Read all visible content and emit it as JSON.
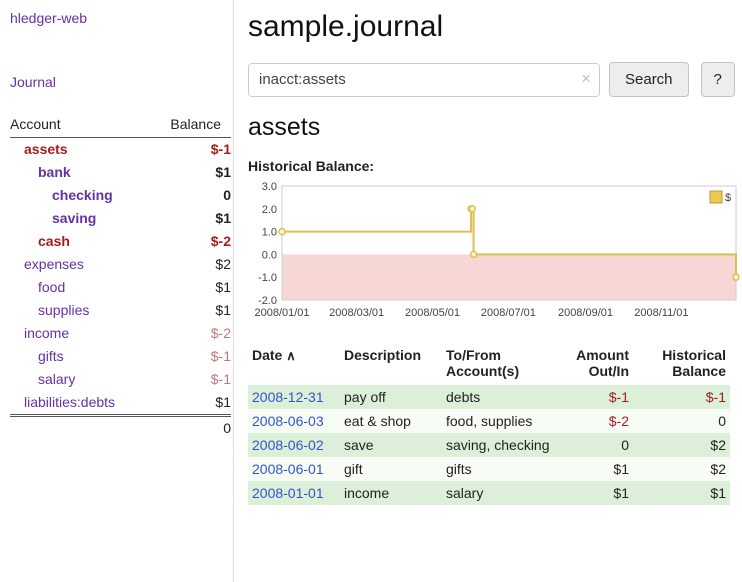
{
  "app": {
    "title": "hledger-web"
  },
  "colors": {
    "accent_purple": "#6531a5",
    "negative_red": "#a31d1d",
    "soft_negative_red": "#b97a7a",
    "date_link_blue": "#3355cc",
    "row_green": "#dcefd8",
    "chart_line_gold": "#dcc050",
    "chart_negative_pink": "#f7d7d5"
  },
  "sidebar": {
    "journal_link": "Journal",
    "accounts_table": {
      "col_account": "Account",
      "col_balance": "Balance",
      "rows": [
        {
          "name": "assets",
          "balance": "$-1"
        },
        {
          "name": "bank",
          "balance": "$1"
        },
        {
          "name": "checking",
          "balance": "0"
        },
        {
          "name": "saving",
          "balance": "$1"
        },
        {
          "name": "cash",
          "balance": "$-2"
        },
        {
          "name": "expenses",
          "balance": "$2"
        },
        {
          "name": "food",
          "balance": "$1"
        },
        {
          "name": "supplies",
          "balance": "$1"
        },
        {
          "name": "income",
          "balance": "$-2"
        },
        {
          "name": "gifts",
          "balance": "$-1"
        },
        {
          "name": "salary",
          "balance": "$-1"
        },
        {
          "name": "liabilities:debts",
          "balance": "$1"
        }
      ],
      "total": "0"
    }
  },
  "main": {
    "title": "sample.journal",
    "search": {
      "value": "inacct:assets",
      "clear_icon": "×",
      "button_label": "Search",
      "help_label": "?"
    },
    "account_heading": "assets",
    "register": {
      "col_date": "Date",
      "sort_icon": "∧",
      "col_description": "Description",
      "col_accounts": "To/From Account(s)",
      "col_amount": "Amount Out/In",
      "col_balance": "Historical Balance",
      "rows": [
        {
          "date": "2008-12-31",
          "description": "pay off",
          "accounts": "debts",
          "amount": "$-1",
          "balance": "$-1"
        },
        {
          "date": "2008-06-03",
          "description": "eat & shop",
          "accounts": "food, supplies",
          "amount": "$-2",
          "balance": "0"
        },
        {
          "date": "2008-06-02",
          "description": "save",
          "accounts": "saving, checking",
          "amount": "0",
          "balance": "$2"
        },
        {
          "date": "2008-06-01",
          "description": "gift",
          "accounts": "gifts",
          "amount": "$1",
          "balance": "$2"
        },
        {
          "date": "2008-01-01",
          "description": "income",
          "accounts": "salary",
          "amount": "$1",
          "balance": "$1"
        }
      ]
    }
  },
  "chart_data": {
    "type": "line",
    "step": true,
    "title": "Historical Balance:",
    "x": [
      "2008-01-01",
      "2008-06-01",
      "2008-06-02",
      "2008-06-03",
      "2008-12-31"
    ],
    "series": [
      {
        "name": "$",
        "values": [
          1,
          2,
          2,
          0,
          -1
        ]
      }
    ],
    "xlim": [
      "2008-01-01",
      "2008-12-31"
    ],
    "ylim": [
      -2,
      3
    ],
    "yticks": [
      3.0,
      2.0,
      1.0,
      0.0,
      -1.0,
      -2.0
    ],
    "xticks": [
      "2008/01/01",
      "2008/03/01",
      "2008/05/01",
      "2008/07/01",
      "2008/09/01",
      "2008/11/01"
    ],
    "legend": "$",
    "legend_position": "top-right",
    "grid": false,
    "line_color": "#dcc050",
    "point_fill": "#fbf4d9",
    "negative_region_color": "#f7d7d5"
  }
}
